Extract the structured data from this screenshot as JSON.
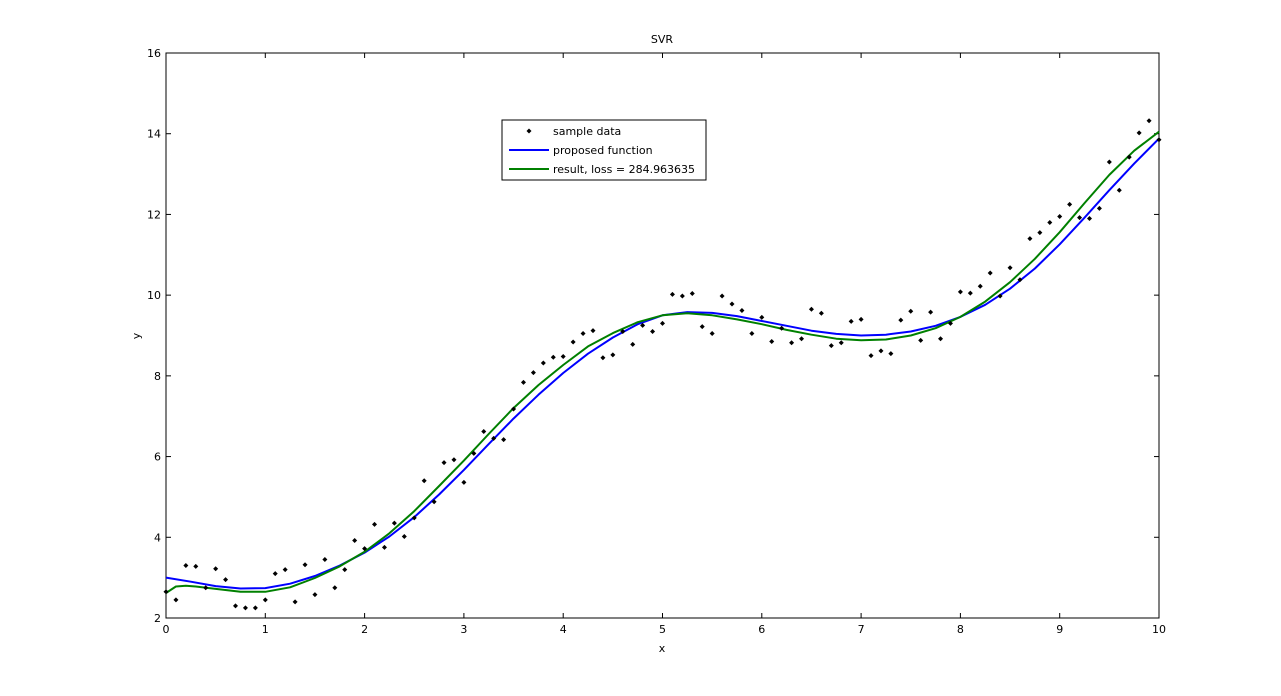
{
  "chart_data": {
    "type": "line",
    "title": "SVR",
    "xlabel": "x",
    "ylabel": "y",
    "xlim": [
      0,
      10
    ],
    "ylim": [
      2,
      16
    ],
    "xticks": [
      0,
      1,
      2,
      3,
      4,
      5,
      6,
      7,
      8,
      9,
      10
    ],
    "yticks": [
      2,
      4,
      6,
      8,
      10,
      12,
      14,
      16
    ],
    "grid": false,
    "legend_placement": "top-center",
    "series": [
      {
        "name": "sample data",
        "kind": "scatter",
        "color": "#000000",
        "x": [
          0.0,
          0.1,
          0.2,
          0.3,
          0.4,
          0.5,
          0.6,
          0.7,
          0.8,
          0.9,
          1.0,
          1.1,
          1.2,
          1.3,
          1.4,
          1.5,
          1.6,
          1.7,
          1.8,
          1.9,
          2.0,
          2.1,
          2.2,
          2.3,
          2.4,
          2.5,
          2.6,
          2.7,
          2.8,
          2.9,
          3.0,
          3.1,
          3.2,
          3.3,
          3.4,
          3.5,
          3.6,
          3.7,
          3.8,
          3.9,
          4.0,
          4.1,
          4.2,
          4.3,
          4.4,
          4.5,
          4.6,
          4.7,
          4.8,
          4.9,
          5.0,
          5.1,
          5.2,
          5.3,
          5.4,
          5.5,
          5.6,
          5.7,
          5.8,
          5.9,
          6.0,
          6.1,
          6.2,
          6.3,
          6.4,
          6.5,
          6.6,
          6.7,
          6.8,
          6.9,
          7.0,
          7.1,
          7.2,
          7.3,
          7.4,
          7.5,
          7.6,
          7.7,
          7.8,
          7.9,
          8.0,
          8.1,
          8.2,
          8.3,
          8.4,
          8.5,
          8.6,
          8.7,
          8.8,
          8.9,
          9.0,
          9.1,
          9.2,
          9.3,
          9.4,
          9.5,
          9.6,
          9.7,
          9.8,
          9.9,
          10.0
        ],
        "y": [
          2.65,
          2.45,
          3.3,
          3.28,
          2.75,
          3.22,
          2.95,
          2.3,
          2.25,
          2.25,
          2.45,
          3.1,
          3.2,
          2.4,
          3.32,
          2.58,
          3.45,
          2.75,
          3.2,
          3.92,
          3.72,
          4.32,
          3.75,
          4.35,
          4.02,
          4.48,
          5.4,
          4.88,
          5.85,
          5.92,
          5.36,
          6.08,
          6.62,
          6.45,
          6.42,
          7.18,
          7.84,
          8.08,
          8.32,
          8.46,
          8.48,
          8.84,
          9.05,
          9.12,
          8.45,
          8.52,
          9.1,
          8.78,
          9.25,
          9.1,
          9.3,
          10.02,
          9.98,
          10.04,
          9.22,
          9.05,
          9.98,
          9.78,
          9.62,
          9.05,
          9.45,
          8.85,
          9.18,
          8.82,
          8.92,
          9.65,
          9.55,
          8.75,
          8.82,
          9.35,
          9.4,
          8.5,
          8.62,
          8.55,
          9.38,
          9.6,
          8.88,
          9.58,
          8.92,
          9.3,
          10.08,
          10.05,
          10.22,
          10.55,
          9.98,
          10.68,
          10.38,
          11.4,
          11.55,
          11.8,
          11.95,
          12.25,
          11.92,
          11.9,
          12.15,
          13.3,
          12.6,
          13.42,
          14.02,
          14.32,
          13.85
        ]
      },
      {
        "name": "proposed function",
        "kind": "line",
        "color": "#0000ff",
        "x": [
          0.0,
          0.25,
          0.5,
          0.75,
          1.0,
          1.25,
          1.5,
          1.75,
          2.0,
          2.25,
          2.5,
          2.75,
          3.0,
          3.25,
          3.5,
          3.75,
          4.0,
          4.25,
          4.5,
          4.75,
          5.0,
          5.25,
          5.5,
          5.75,
          6.0,
          6.25,
          6.5,
          6.75,
          7.0,
          7.25,
          7.5,
          7.75,
          8.0,
          8.25,
          8.5,
          8.75,
          9.0,
          9.25,
          9.5,
          9.75,
          10.0
        ],
        "y": [
          3.0,
          2.9,
          2.79,
          2.73,
          2.74,
          2.85,
          3.04,
          3.3,
          3.62,
          4.02,
          4.5,
          5.06,
          5.67,
          6.31,
          6.94,
          7.53,
          8.07,
          8.55,
          8.95,
          9.28,
          9.5,
          9.58,
          9.56,
          9.48,
          9.36,
          9.24,
          9.12,
          9.04,
          9.0,
          9.02,
          9.1,
          9.24,
          9.46,
          9.76,
          10.16,
          10.66,
          11.26,
          11.92,
          12.6,
          13.26,
          13.88
        ]
      },
      {
        "name": "result, loss = 284.963635",
        "kind": "line",
        "color": "#008000",
        "x": [
          0.0,
          0.1,
          0.2,
          0.3,
          0.5,
          0.75,
          1.0,
          1.25,
          1.5,
          1.75,
          2.0,
          2.25,
          2.5,
          2.75,
          3.0,
          3.25,
          3.5,
          3.75,
          4.0,
          4.25,
          4.5,
          4.75,
          5.0,
          5.25,
          5.5,
          5.75,
          6.0,
          6.25,
          6.5,
          6.75,
          7.0,
          7.25,
          7.5,
          7.75,
          8.0,
          8.25,
          8.5,
          8.75,
          9.0,
          9.25,
          9.5,
          9.75,
          10.0
        ],
        "y": [
          2.62,
          2.78,
          2.8,
          2.78,
          2.72,
          2.65,
          2.65,
          2.76,
          2.99,
          3.28,
          3.64,
          4.1,
          4.65,
          5.27,
          5.9,
          6.56,
          7.2,
          7.77,
          8.27,
          8.73,
          9.06,
          9.33,
          9.5,
          9.55,
          9.5,
          9.4,
          9.28,
          9.14,
          9.02,
          8.92,
          8.88,
          8.9,
          9.0,
          9.18,
          9.46,
          9.84,
          10.32,
          10.9,
          11.56,
          12.28,
          12.98,
          13.58,
          14.05
        ]
      }
    ]
  }
}
